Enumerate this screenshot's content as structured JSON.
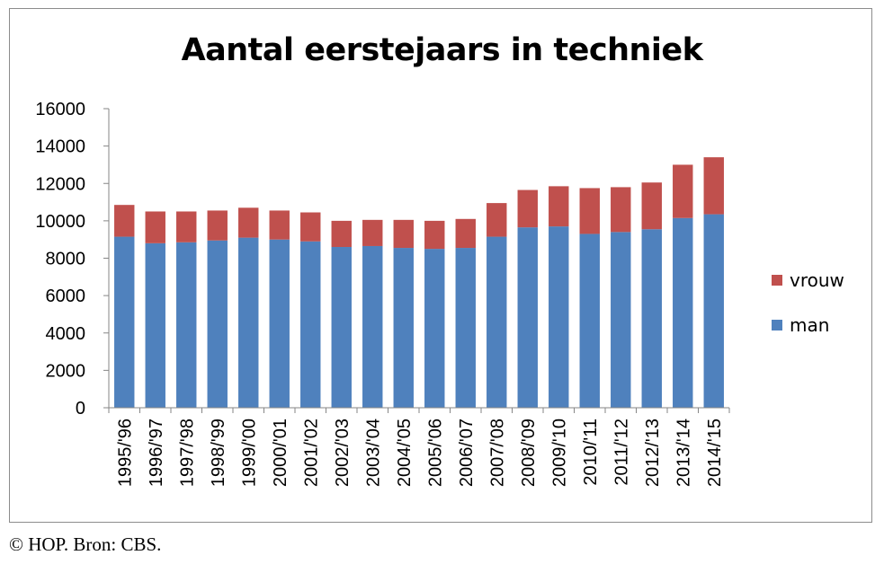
{
  "chart_data": {
    "type": "bar",
    "stacked": true,
    "title": "Aantal eerstejaars in techniek",
    "xlabel": "",
    "ylabel": "",
    "ylim": [
      0,
      16000
    ],
    "yticks": [
      0,
      2000,
      4000,
      6000,
      8000,
      10000,
      12000,
      14000,
      16000
    ],
    "grid": false,
    "legend_position": "right",
    "categories": [
      "1995/'96",
      "1996/'97",
      "1997/'98",
      "1998/'99",
      "1999/'00",
      "2000/'01",
      "2001/'02",
      "2002/'03",
      "2003/'04",
      "2004/'05",
      "2005/'06",
      "2006/'07",
      "2007/'08",
      "2008/'09",
      "2009/'10",
      "2010/'11",
      "2011/'12",
      "2012/'13",
      "2013/'14",
      "2014/'15"
    ],
    "series": [
      {
        "name": "man",
        "color": "#4f81bd",
        "values": [
          9150,
          8800,
          8850,
          8950,
          9100,
          9000,
          8900,
          8600,
          8650,
          8550,
          8500,
          8550,
          9150,
          9650,
          9700,
          9300,
          9400,
          9550,
          10150,
          10350
        ]
      },
      {
        "name": "vrouw",
        "color": "#c0504d",
        "values": [
          1700,
          1700,
          1650,
          1600,
          1600,
          1550,
          1550,
          1400,
          1400,
          1500,
          1500,
          1550,
          1800,
          2000,
          2150,
          2450,
          2400,
          2500,
          2850,
          3050
        ]
      }
    ],
    "legend_order": [
      "vrouw",
      "man"
    ]
  },
  "footer": {
    "credit": "© HOP. Bron: CBS."
  }
}
